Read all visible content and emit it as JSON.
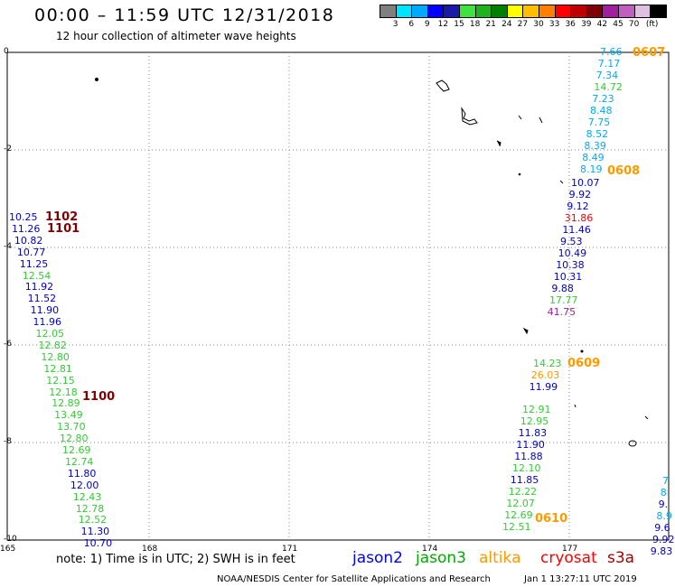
{
  "header": {
    "title": "00:00 – 11:59 UTC 12/31/2018",
    "subtitle": "12 hour collection of altimeter wave heights"
  },
  "colorbar": {
    "colors": [
      "#7f7f7f",
      "#00e5ff",
      "#00aaff",
      "#0000ff",
      "#1a1aa8",
      "#3fe23f",
      "#1fb21f",
      "#007f00",
      "#ffff00",
      "#ffbf00",
      "#ff7f00",
      "#ff0000",
      "#bf0000",
      "#7f0000",
      "#9f1f9f",
      "#c05fc0",
      "#e0c0e0",
      "#000000"
    ],
    "labels": [
      "3",
      "6",
      "9",
      "12",
      "15",
      "18",
      "21",
      "24",
      "27",
      "30",
      "33",
      "36",
      "39",
      "42",
      "45",
      "70",
      "(ft)"
    ]
  },
  "axes": {
    "x_ticks": [
      "165",
      "168",
      "171",
      "174",
      "177"
    ],
    "y_ticks": [
      "0",
      "-2",
      "-4",
      "-6",
      "-8",
      "-10"
    ]
  },
  "tracks": [
    {
      "id": "track-1102-1101",
      "tags": [
        {
          "text": "1102",
          "color": "#7f0000"
        },
        {
          "text": "1101",
          "color": "#7f0000"
        }
      ]
    },
    {
      "id": "track-1100",
      "tags": [
        {
          "text": "1100",
          "color": "#7f0000"
        }
      ]
    },
    {
      "id": "track-0607",
      "tags": [
        {
          "text": "0607",
          "color": "#ff9900"
        }
      ]
    },
    {
      "id": "track-0608",
      "tags": [
        {
          "text": "0608",
          "color": "#ff9900"
        }
      ]
    },
    {
      "id": "track-0609",
      "tags": [
        {
          "text": "0609",
          "color": "#ff9900"
        }
      ]
    },
    {
      "id": "track-0610",
      "tags": [
        {
          "text": "0610",
          "color": "#ff9900"
        }
      ]
    }
  ],
  "left_track_values": [
    {
      "v": "10.25",
      "c": "#0000cc"
    },
    {
      "v": "11.26",
      "c": "#0000cc"
    },
    {
      "v": "10.82",
      "c": "#0000cc"
    },
    {
      "v": "10.77",
      "c": "#0000cc"
    },
    {
      "v": "11.25",
      "c": "#0000cc"
    },
    {
      "v": "12.54",
      "c": "#33cc33"
    },
    {
      "v": "11.92",
      "c": "#0000cc"
    },
    {
      "v": "11.52",
      "c": "#0000cc"
    },
    {
      "v": "11.90",
      "c": "#0000cc"
    },
    {
      "v": "11.96",
      "c": "#0000cc"
    },
    {
      "v": "12.05",
      "c": "#33cc33"
    },
    {
      "v": "12.82",
      "c": "#33cc33"
    },
    {
      "v": "12.80",
      "c": "#33cc33"
    },
    {
      "v": "12.81",
      "c": "#33cc33"
    },
    {
      "v": "12.15",
      "c": "#33cc33"
    },
    {
      "v": "12.18",
      "c": "#33cc33"
    },
    {
      "v": "12.89",
      "c": "#33cc33"
    },
    {
      "v": "13.49",
      "c": "#33cc33"
    },
    {
      "v": "13.70",
      "c": "#33cc33"
    },
    {
      "v": "12.80",
      "c": "#33cc33"
    },
    {
      "v": "12.69",
      "c": "#33cc33"
    },
    {
      "v": "12.74",
      "c": "#33cc33"
    },
    {
      "v": "11.80",
      "c": "#0000cc"
    },
    {
      "v": "12.00",
      "c": "#0000cc"
    },
    {
      "v": "12.43",
      "c": "#33cc33"
    },
    {
      "v": "12.78",
      "c": "#33cc33"
    },
    {
      "v": "12.52",
      "c": "#33cc33"
    },
    {
      "v": "11.30",
      "c": "#0000cc"
    },
    {
      "v": "10.70",
      "c": "#0000cc"
    }
  ],
  "right_track_top_values": [
    {
      "v": "7.66",
      "c": "#00aaff"
    },
    {
      "v": "7.17",
      "c": "#00aaff"
    },
    {
      "v": "7.34",
      "c": "#00aaff"
    },
    {
      "v": "14.72",
      "c": "#33cc33"
    },
    {
      "v": "7.23",
      "c": "#00aaff"
    },
    {
      "v": "8.48",
      "c": "#00aaff"
    },
    {
      "v": "7.75",
      "c": "#00aaff"
    },
    {
      "v": "8.52",
      "c": "#00aaff"
    },
    {
      "v": "8.39",
      "c": "#00aaff"
    },
    {
      "v": "8.49",
      "c": "#00aaff"
    },
    {
      "v": "8.19",
      "c": "#00aaff"
    }
  ],
  "mid_track_values": [
    {
      "v": "10.07",
      "c": "#0000cc"
    },
    {
      "v": "9.92",
      "c": "#0000cc"
    },
    {
      "v": "9.12",
      "c": "#0000cc"
    },
    {
      "v": "31.86",
      "c": "#ff0000"
    },
    {
      "v": "11.46",
      "c": "#0000cc"
    },
    {
      "v": "9.53",
      "c": "#0000cc"
    },
    {
      "v": "10.49",
      "c": "#0000cc"
    },
    {
      "v": "10.38",
      "c": "#0000cc"
    },
    {
      "v": "10.31",
      "c": "#0000cc"
    },
    {
      "v": "9.88",
      "c": "#0000cc"
    },
    {
      "v": "17.77",
      "c": "#33cc33"
    },
    {
      "v": "41.75",
      "c": "#9f1f9f"
    }
  ],
  "lower_track_values": [
    {
      "v": "14.23",
      "c": "#33cc33"
    },
    {
      "v": "26.03",
      "c": "#ff9900"
    },
    {
      "v": "11.99",
      "c": "#0000cc"
    }
  ],
  "bottom_track_values": [
    {
      "v": "12.91",
      "c": "#33cc33"
    },
    {
      "v": "12.95",
      "c": "#33cc33"
    },
    {
      "v": "11.83",
      "c": "#0000cc"
    },
    {
      "v": "11.90",
      "c": "#0000cc"
    },
    {
      "v": "11.88",
      "c": "#0000cc"
    },
    {
      "v": "12.10",
      "c": "#33cc33"
    },
    {
      "v": "11.85",
      "c": "#0000cc"
    },
    {
      "v": "12.22",
      "c": "#33cc33"
    },
    {
      "v": "12.07",
      "c": "#33cc33"
    },
    {
      "v": "12.69",
      "c": "#33cc33"
    },
    {
      "v": "12.51",
      "c": "#33cc33"
    }
  ],
  "far_right_values": [
    {
      "v": "7",
      "c": "#00aaff"
    },
    {
      "v": "8.",
      "c": "#00aaff"
    },
    {
      "v": "9.",
      "c": "#0000cc"
    },
    {
      "v": "8.9",
      "c": "#00aaff"
    },
    {
      "v": "9.6",
      "c": "#0000cc"
    },
    {
      "v": "9.92",
      "c": "#0000cc"
    },
    {
      "v": "9.83",
      "c": "#0000cc"
    }
  ],
  "footer": {
    "note": "note:  1) Time is in UTC;  2) SWH is in feet",
    "satellites": [
      {
        "name": "jason2",
        "color": "#0000ff"
      },
      {
        "name": "jason3",
        "color": "#00aa00"
      },
      {
        "name": "altika",
        "color": "#ff9900"
      },
      {
        "name": "cryosat",
        "color": "#ff0000"
      },
      {
        "name": "s3a",
        "color": "#aa0000"
      }
    ],
    "credits": "NOAA/NESDIS Center for Satellite Applications and Research",
    "timestamp": "Jan  1 13:27:11 UTC 2019"
  }
}
